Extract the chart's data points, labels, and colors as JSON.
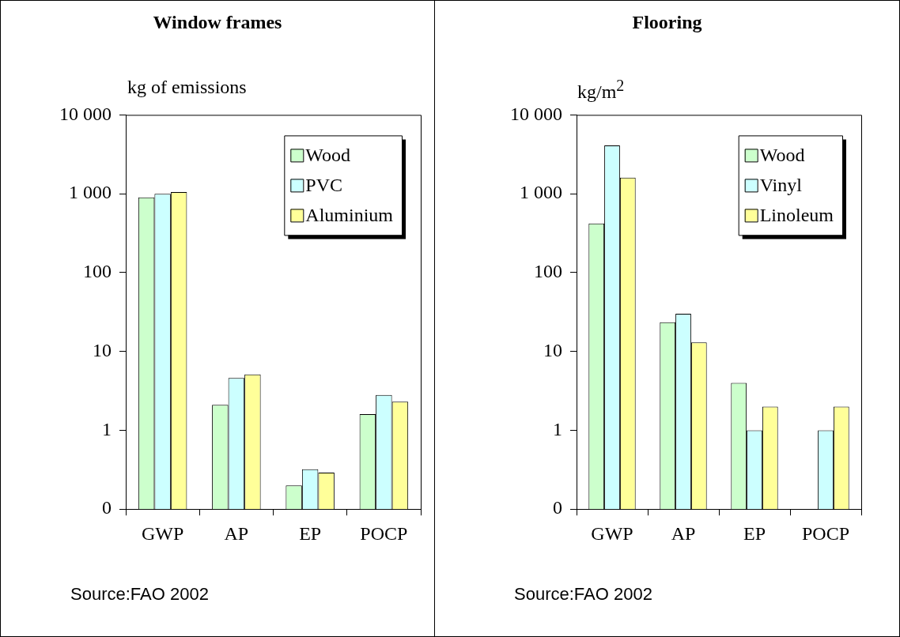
{
  "chart_data": [
    {
      "type": "bar",
      "title": "Window frames",
      "ylabel": "kg of emissions",
      "categories": [
        "GWP",
        "AP",
        "EP",
        "POCP"
      ],
      "log": true,
      "ylim": [
        0.1,
        10000
      ],
      "yticks": [
        {
          "value": 10000,
          "label": "10 000"
        },
        {
          "value": 1000,
          "label": "1 000"
        },
        100,
        10,
        1,
        {
          "value": 0.1,
          "label": "0"
        }
      ],
      "legend": "top right",
      "annotations": [
        "Source:FAO 2002"
      ],
      "series": [
        {
          "name": "Wood",
          "color": "#ccffcc",
          "values": [
            900,
            2.1,
            0.2,
            1.6
          ]
        },
        {
          "name": "PVC",
          "color": "#ccffff",
          "values": [
            1000,
            4.6,
            0.32,
            2.8
          ]
        },
        {
          "name": "Aluminium",
          "color": "#ffff99",
          "values": [
            1050,
            5.1,
            0.29,
            2.3
          ]
        }
      ]
    },
    {
      "type": "bar",
      "title": "Flooring",
      "ylabel": "kg/m$^{2}$",
      "categories": [
        "GWP",
        "AP",
        "EP",
        "POCP"
      ],
      "log": true,
      "ylim": [
        0.1,
        10000
      ],
      "yticks": [
        {
          "value": 10000,
          "label": "10 000"
        },
        {
          "value": 1000,
          "label": "1 000"
        },
        100,
        10,
        1,
        {
          "value": 0.1,
          "label": "0"
        }
      ],
      "legend": "top right",
      "annotations": [
        "Source:FAO 2002"
      ],
      "series": [
        {
          "name": "Wood",
          "color": "#ccffcc",
          "values": [
            420,
            23.5,
            4,
            null
          ]
        },
        {
          "name": "Vinyl",
          "color": "#ccffff",
          "values": [
            4100,
            30,
            1,
            1
          ]
        },
        {
          "name": "Linoleum",
          "color": "#ffff99",
          "values": [
            1600,
            13,
            2,
            2
          ]
        }
      ]
    }
  ]
}
